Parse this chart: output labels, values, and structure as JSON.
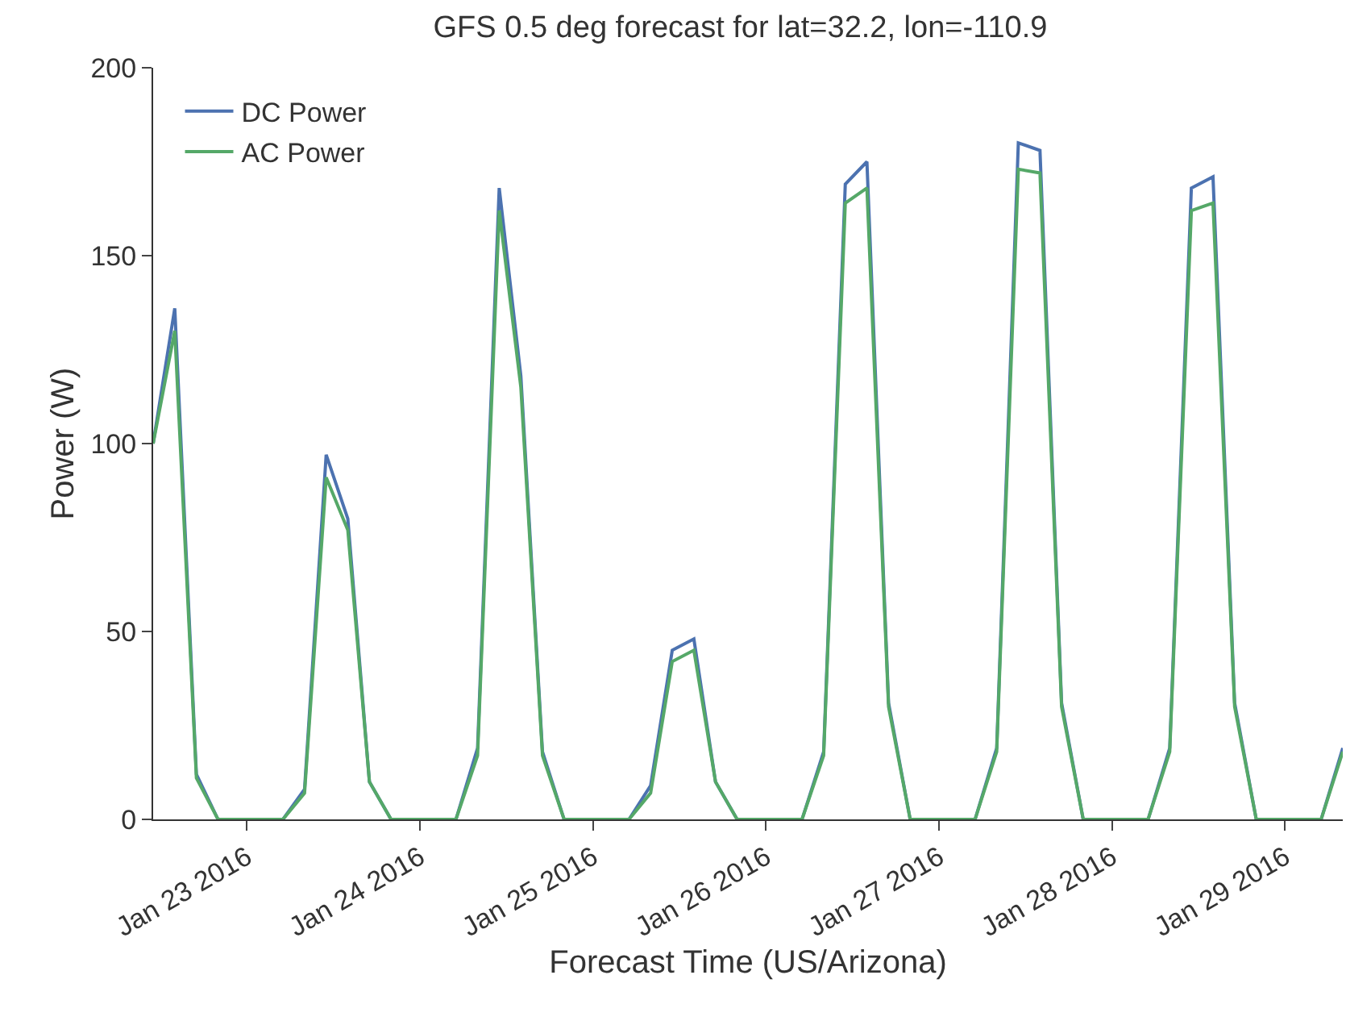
{
  "chart_data": {
    "type": "line",
    "title": "GFS 0.5 deg forecast for lat=32.2, lon=-110.9",
    "xlabel": "Forecast Time (US/Arizona)",
    "ylabel": "Power (W)",
    "x": [
      "2016-01-22T11:00",
      "2016-01-22T14:00",
      "2016-01-22T17:00",
      "2016-01-22T20:00",
      "2016-01-22T23:00",
      "2016-01-23T02:00",
      "2016-01-23T05:00",
      "2016-01-23T08:00",
      "2016-01-23T11:00",
      "2016-01-23T14:00",
      "2016-01-23T17:00",
      "2016-01-23T20:00",
      "2016-01-23T23:00",
      "2016-01-24T02:00",
      "2016-01-24T05:00",
      "2016-01-24T08:00",
      "2016-01-24T11:00",
      "2016-01-24T14:00",
      "2016-01-24T17:00",
      "2016-01-24T20:00",
      "2016-01-24T23:00",
      "2016-01-25T02:00",
      "2016-01-25T05:00",
      "2016-01-25T08:00",
      "2016-01-25T11:00",
      "2016-01-25T14:00",
      "2016-01-25T17:00",
      "2016-01-25T20:00",
      "2016-01-25T23:00",
      "2016-01-26T02:00",
      "2016-01-26T05:00",
      "2016-01-26T08:00",
      "2016-01-26T11:00",
      "2016-01-26T14:00",
      "2016-01-26T17:00",
      "2016-01-26T20:00",
      "2016-01-26T23:00",
      "2016-01-27T02:00",
      "2016-01-27T05:00",
      "2016-01-27T08:00",
      "2016-01-27T11:00",
      "2016-01-27T14:00",
      "2016-01-27T17:00",
      "2016-01-27T20:00",
      "2016-01-27T23:00",
      "2016-01-28T02:00",
      "2016-01-28T05:00",
      "2016-01-28T08:00",
      "2016-01-28T11:00",
      "2016-01-28T14:00",
      "2016-01-28T17:00",
      "2016-01-28T20:00",
      "2016-01-28T23:00",
      "2016-01-29T02:00",
      "2016-01-29T05:00",
      "2016-01-29T08:00"
    ],
    "series": [
      {
        "name": "DC Power",
        "color": "#4c72b0",
        "values": [
          100,
          136,
          12,
          0,
          0,
          0,
          0,
          8,
          97,
          80,
          10,
          0,
          0,
          0,
          0,
          19,
          168,
          118,
          18,
          0,
          0,
          0,
          0,
          9,
          45,
          48,
          10,
          0,
          0,
          0,
          0,
          18,
          169,
          175,
          31,
          0,
          0,
          0,
          0,
          19,
          180,
          178,
          31,
          0,
          0,
          0,
          0,
          19,
          168,
          171,
          31,
          0,
          0,
          0,
          0,
          19
        ]
      },
      {
        "name": "AC Power",
        "color": "#55a868",
        "values": [
          100,
          130,
          11,
          0,
          0,
          0,
          0,
          7,
          91,
          77,
          10,
          0,
          0,
          0,
          0,
          17,
          162,
          115,
          17,
          0,
          0,
          0,
          0,
          7,
          42,
          45,
          10,
          0,
          0,
          0,
          0,
          17,
          164,
          168,
          30,
          0,
          0,
          0,
          0,
          18,
          173,
          172,
          30,
          0,
          0,
          0,
          0,
          18,
          162,
          164,
          30,
          0,
          0,
          0,
          0,
          18
        ]
      }
    ],
    "xlim": [
      "2016-01-22T11:00",
      "2016-01-29T08:00"
    ],
    "xticks": [
      {
        "value": "2016-01-23",
        "label": "Jan 23 2016"
      },
      {
        "value": "2016-01-24",
        "label": "Jan 24 2016"
      },
      {
        "value": "2016-01-25",
        "label": "Jan 25 2016"
      },
      {
        "value": "2016-01-26",
        "label": "Jan 26 2016"
      },
      {
        "value": "2016-01-27",
        "label": "Jan 27 2016"
      },
      {
        "value": "2016-01-28",
        "label": "Jan 28 2016"
      },
      {
        "value": "2016-01-29",
        "label": "Jan 29 2016"
      }
    ],
    "ylim": [
      0,
      200
    ],
    "yticks": [
      0,
      50,
      100,
      150,
      200
    ],
    "legend": "top left",
    "marker": "none",
    "line_style": "solid"
  }
}
